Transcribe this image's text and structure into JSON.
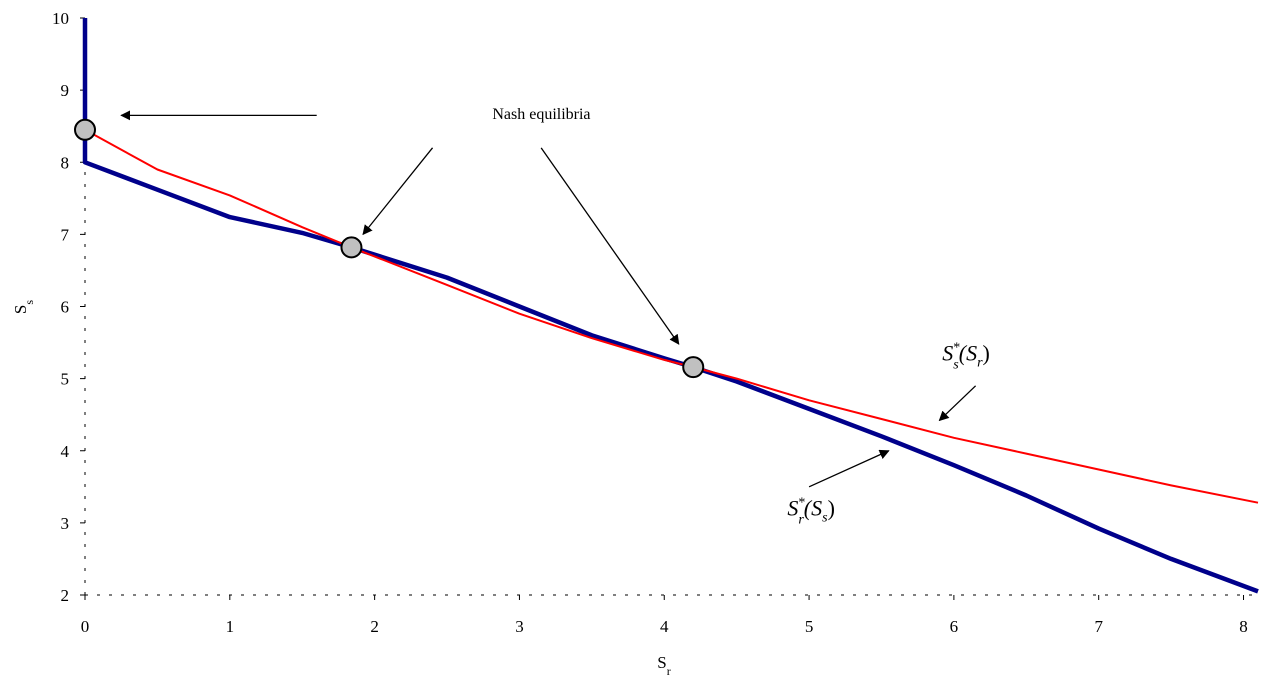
{
  "chart_data": {
    "type": "line",
    "xlabel": "S",
    "xlabel_sub": "r",
    "ylabel": "S",
    "ylabel_sub": "s",
    "xlim": [
      0,
      8.1
    ],
    "ylim": [
      2,
      10
    ],
    "x_ticks": [
      0,
      1,
      2,
      3,
      4,
      5,
      6,
      7,
      8
    ],
    "y_ticks": [
      2,
      3,
      4,
      5,
      6,
      7,
      8,
      9,
      10
    ],
    "grid": false,
    "axis_style": "dotted",
    "series": [
      {
        "color": "#00008B",
        "points": [
          [
            0,
            10
          ],
          [
            0,
            8
          ],
          [
            0.5,
            7.62
          ],
          [
            1.0,
            7.24
          ],
          [
            1.5,
            7.02
          ],
          [
            1.84,
            6.82
          ],
          [
            2.5,
            6.4
          ],
          [
            3.0,
            6.0
          ],
          [
            3.5,
            5.6
          ],
          [
            4.0,
            5.28
          ],
          [
            4.2,
            5.16
          ],
          [
            4.5,
            4.96
          ],
          [
            5.0,
            4.58
          ],
          [
            5.5,
            4.2
          ],
          [
            6.0,
            3.8
          ],
          [
            6.5,
            3.38
          ],
          [
            7.0,
            2.92
          ],
          [
            7.5,
            2.5
          ],
          [
            8.1,
            2.05
          ]
        ]
      },
      {
        "color": "#FF0000",
        "points": [
          [
            0,
            8.45
          ],
          [
            0.5,
            7.9
          ],
          [
            1.0,
            7.54
          ],
          [
            1.5,
            7.1
          ],
          [
            1.84,
            6.82
          ],
          [
            2.5,
            6.3
          ],
          [
            3.0,
            5.9
          ],
          [
            3.5,
            5.56
          ],
          [
            4.0,
            5.26
          ],
          [
            4.2,
            5.16
          ],
          [
            4.5,
            5.0
          ],
          [
            5.0,
            4.7
          ],
          [
            5.5,
            4.44
          ],
          [
            6.0,
            4.18
          ],
          [
            6.5,
            3.96
          ],
          [
            7.0,
            3.74
          ],
          [
            7.5,
            3.52
          ],
          [
            8.1,
            3.28
          ]
        ]
      }
    ],
    "equilibria": [
      {
        "x": 0.0,
        "y": 8.45
      },
      {
        "x": 1.84,
        "y": 6.82
      },
      {
        "x": 4.2,
        "y": 5.16
      }
    ],
    "annotations": [
      {
        "text": "Nash equilibria",
        "text_at": {
          "x": 3.0,
          "y": 8.6
        },
        "arrows": [
          {
            "from": {
              "x": 1.6,
              "y": 8.65
            },
            "to": {
              "x": 0.25,
              "y": 8.65
            }
          },
          {
            "from": {
              "x": 2.4,
              "y": 8.2
            },
            "to": {
              "x": 1.92,
              "y": 7.0
            }
          },
          {
            "from": {
              "x": 3.15,
              "y": 8.2
            },
            "to": {
              "x": 4.1,
              "y": 5.48
            }
          }
        ]
      },
      {
        "main": "S",
        "sup": "*",
        "sub": "s",
        "arg_open": "(S",
        "arg_sub": "r",
        "arg_close": ")",
        "text_at": {
          "x": 5.92,
          "y": 5.25
        },
        "arrow": {
          "from": {
            "x": 6.15,
            "y": 4.9
          },
          "to": {
            "x": 5.9,
            "y": 4.42
          }
        }
      },
      {
        "main": "S",
        "sup": "*",
        "sub": "r",
        "arg_open": "(S",
        "arg_sub": "s",
        "arg_close": ")",
        "text_at": {
          "x": 4.85,
          "y": 3.1
        },
        "arrow": {
          "from": {
            "x": 5.0,
            "y": 3.5
          },
          "to": {
            "x": 5.55,
            "y": 4.0
          }
        }
      }
    ]
  }
}
